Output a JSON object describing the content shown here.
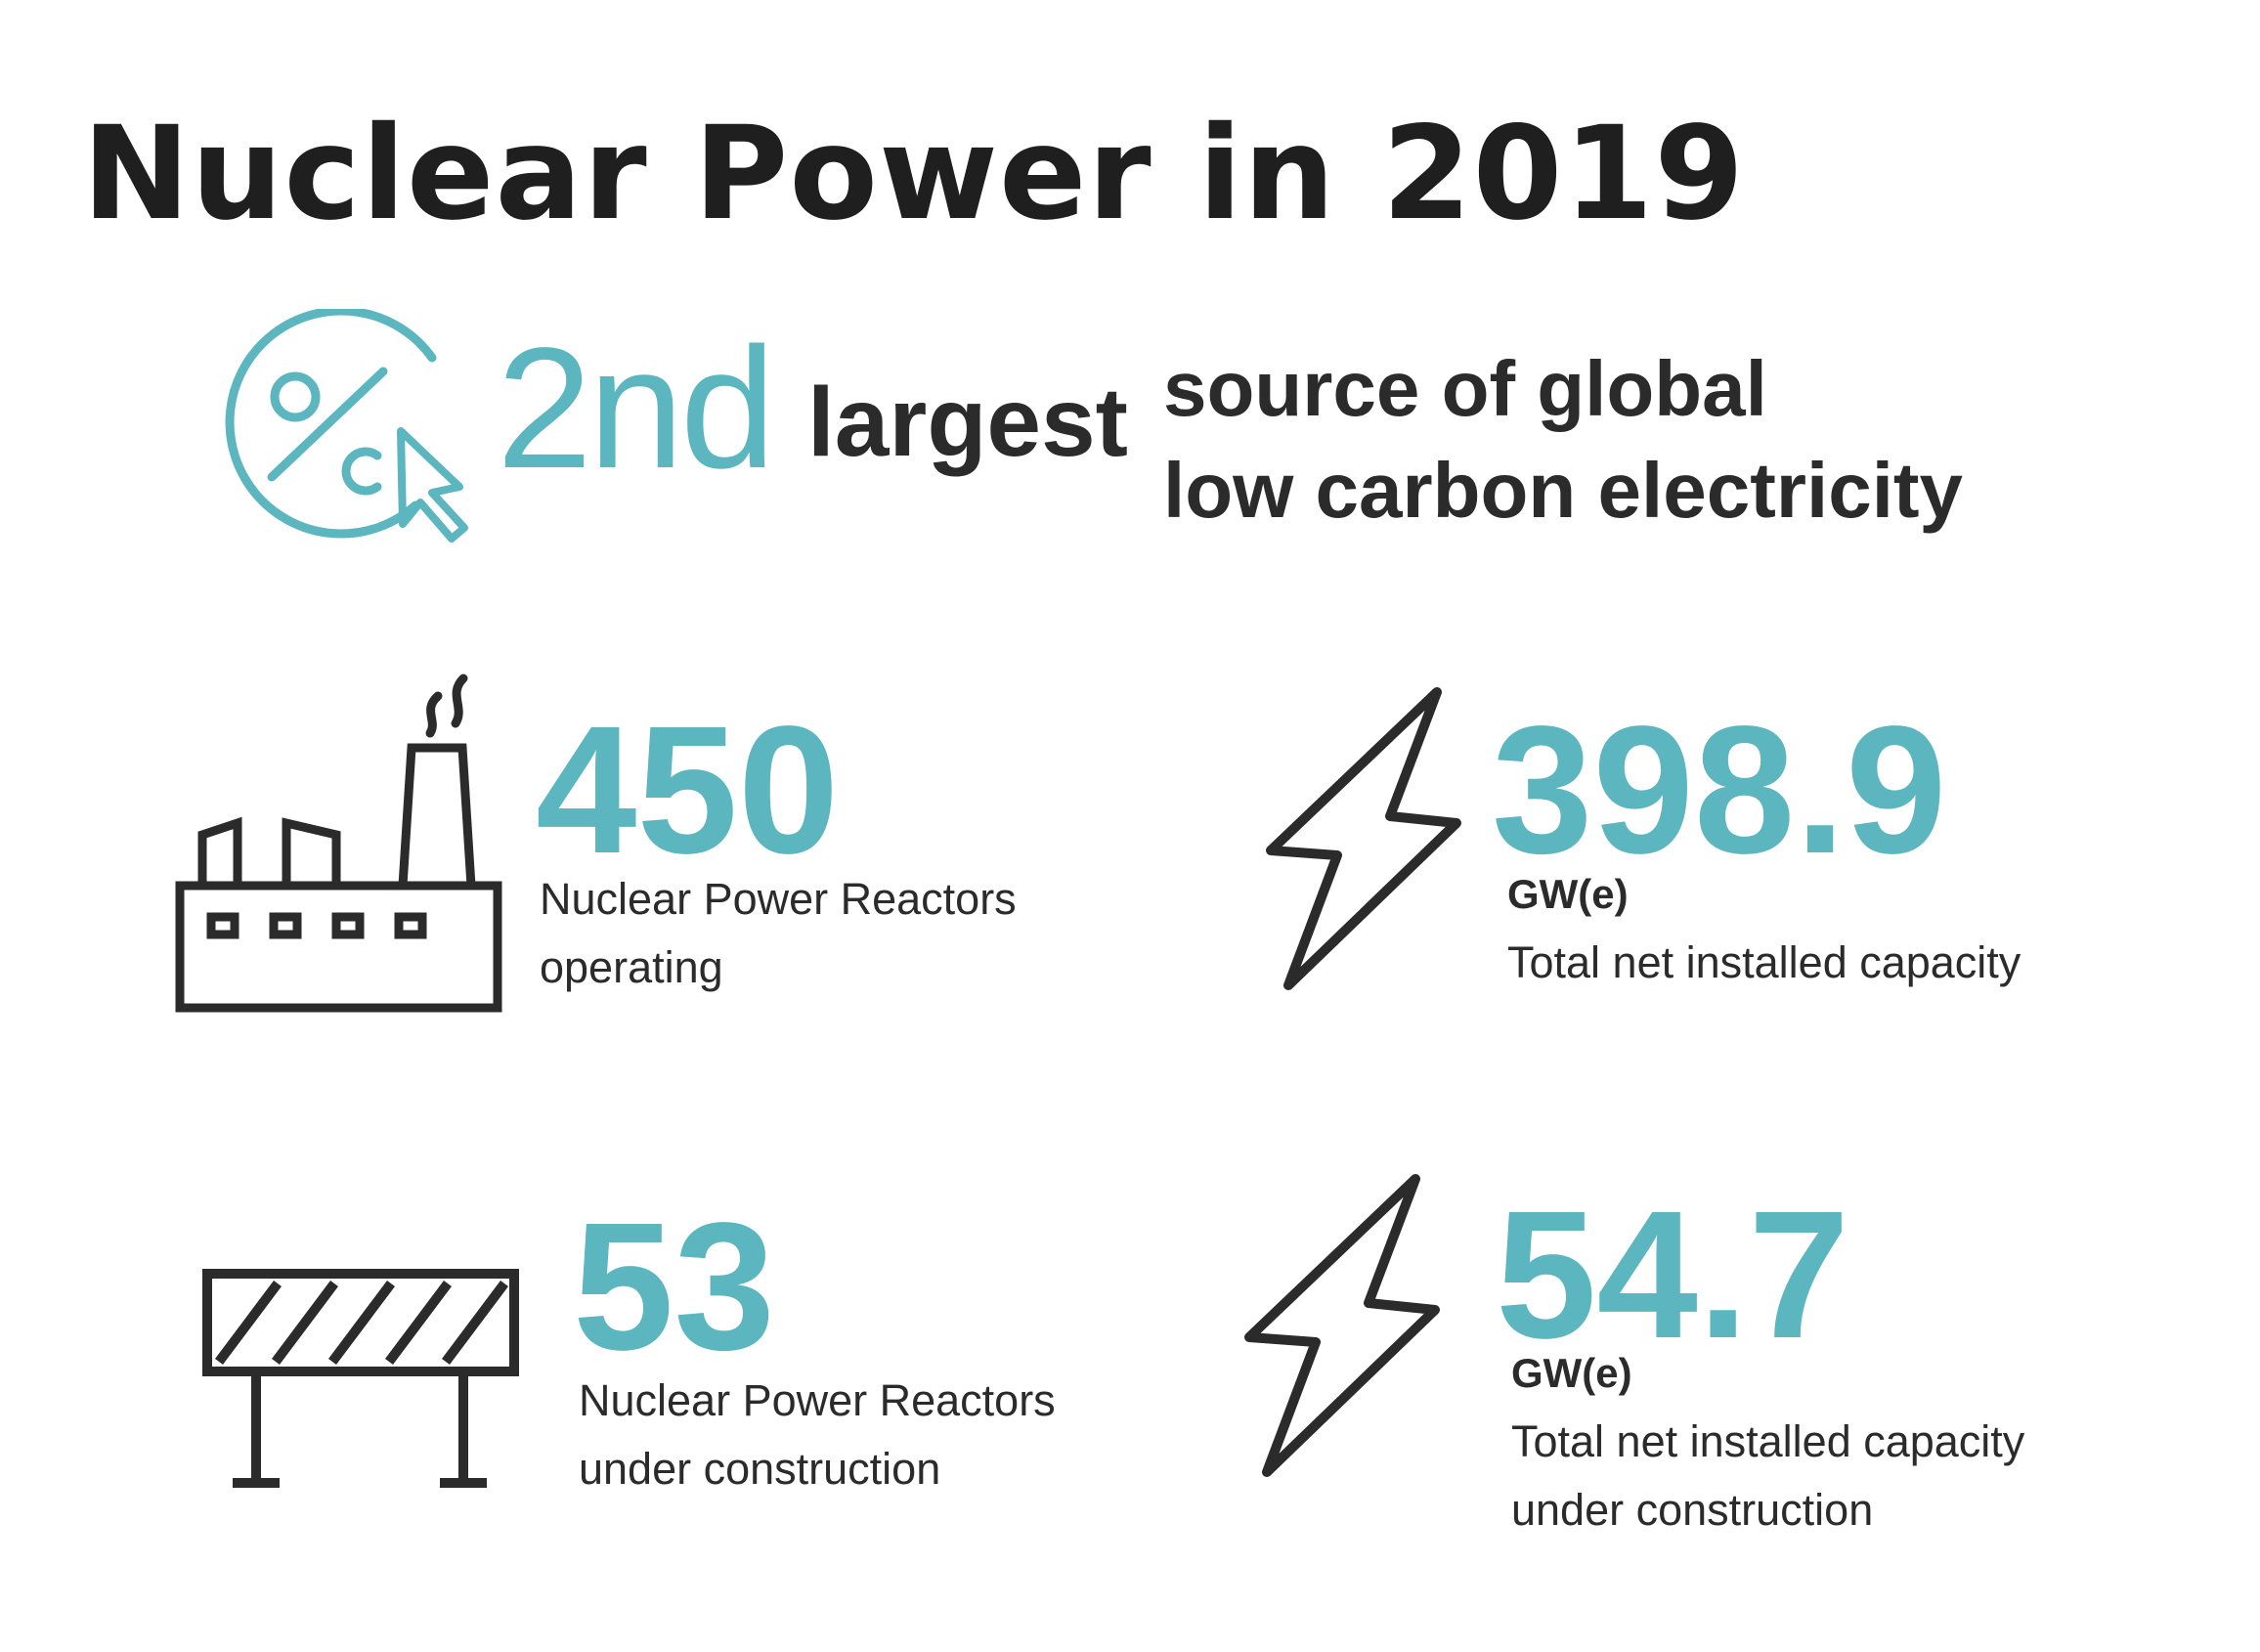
{
  "title": "Nuclear Power in 2019",
  "colors": {
    "accent": "#5bb6bf",
    "text": "#2b2b2b"
  },
  "rank": {
    "icon": "percent-click-icon",
    "value": "2nd",
    "word": "largest",
    "description": [
      "source of global",
      "low carbon electricity"
    ]
  },
  "stats": {
    "reactors_operating": {
      "icon": "factory-icon",
      "value": "450",
      "label": [
        "Nuclear Power Reactors",
        "operating"
      ]
    },
    "capacity_installed": {
      "icon": "lightning-bolt-icon",
      "value": "398.9",
      "unit": "GW(e)",
      "label": [
        "Total net installed capacity"
      ]
    },
    "reactors_under_construction": {
      "icon": "construction-barrier-icon",
      "value": "53",
      "label": [
        "Nuclear Power Reactors",
        "under construction"
      ]
    },
    "capacity_under_construction": {
      "icon": "lightning-bolt-icon",
      "value": "54.7",
      "unit": "GW(e)",
      "label": [
        "Total net installed capacity",
        "under construction"
      ]
    }
  }
}
